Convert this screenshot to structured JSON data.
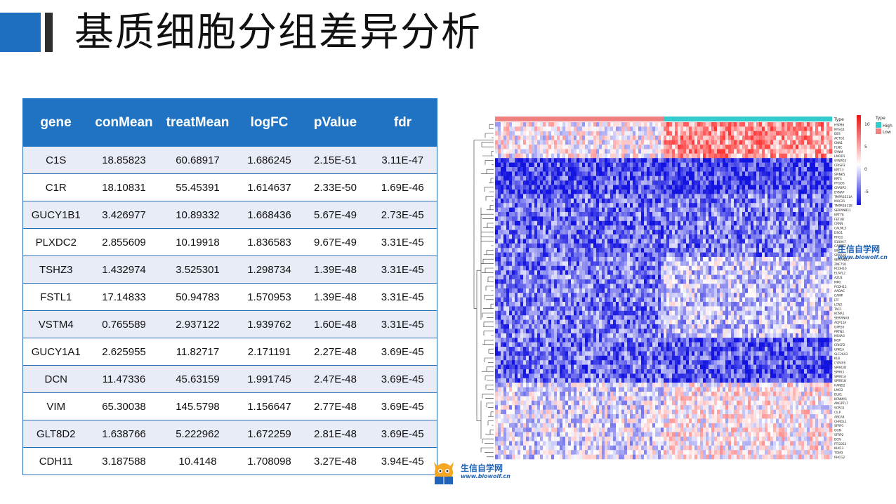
{
  "title": "基质细胞分组差异分析",
  "table": {
    "headers": [
      "gene",
      "conMean",
      "treatMean",
      "logFC",
      "pValue",
      "fdr"
    ],
    "rows": [
      [
        "C1S",
        "18.85823",
        "60.68917",
        "1.686245",
        "2.15E-51",
        "3.11E-47"
      ],
      [
        "C1R",
        "18.10831",
        "55.45391",
        "1.614637",
        "2.33E-50",
        "1.69E-46"
      ],
      [
        "GUCY1B1",
        "3.426977",
        "10.89332",
        "1.668436",
        "5.67E-49",
        "2.73E-45"
      ],
      [
        "PLXDC2",
        "2.855609",
        "10.19918",
        "1.836583",
        "9.67E-49",
        "3.31E-45"
      ],
      [
        "TSHZ3",
        "1.432974",
        "3.525301",
        "1.298734",
        "1.39E-48",
        "3.31E-45"
      ],
      [
        "FSTL1",
        "17.14833",
        "50.94783",
        "1.570953",
        "1.39E-48",
        "3.31E-45"
      ],
      [
        "VSTM4",
        "0.765589",
        "2.937122",
        "1.939762",
        "1.60E-48",
        "3.31E-45"
      ],
      [
        "GUCY1A1",
        "2.625955",
        "11.82717",
        "2.171191",
        "2.27E-48",
        "3.69E-45"
      ],
      [
        "DCN",
        "11.47336",
        "45.63159",
        "1.991745",
        "2.47E-48",
        "3.69E-45"
      ],
      [
        "VIM",
        "65.30038",
        "145.5798",
        "1.156647",
        "2.77E-48",
        "3.69E-45"
      ],
      [
        "GLT8D2",
        "1.638766",
        "5.222962",
        "1.672259",
        "2.81E-48",
        "3.69E-45"
      ],
      [
        "CDH11",
        "3.187588",
        "10.4148",
        "1.708098",
        "3.27E-48",
        "3.94E-45"
      ]
    ]
  },
  "logo": {
    "name": "生信自学网",
    "url": "www.biowolf.cn"
  },
  "chart_data": {
    "type": "heatmap",
    "annotation_label": "Type",
    "groups": [
      {
        "name": "Low",
        "color": "#f08080",
        "fraction": 0.5
      },
      {
        "name": "High",
        "color": "#33cccc",
        "fraction": 0.5
      }
    ],
    "legend": {
      "title": "Type",
      "entries": [
        "High",
        "Low"
      ],
      "ticks": [
        10,
        5,
        0,
        -5
      ],
      "color_high": "#e81414",
      "color_mid": "#ffffff",
      "color_low": "#1414e0"
    },
    "gene_labels": [
      "HSPB6",
      "MYH11",
      "DES",
      "ACTG2",
      "CNN1",
      "FLNC",
      "SYNM",
      "LMOD1",
      "SYNPO2",
      "CRISP3",
      "KRT13",
      "SPINK5",
      "KRT4",
      "PTGDS",
      "CRABP2",
      "DYNAP",
      "TMPRSS11A",
      "MUC21",
      "TMPRSS11B",
      "SERPINB11",
      "KRT78",
      "FETUB",
      "CRNN",
      "CALML3",
      "DSG1",
      "RHCG",
      "S100A7",
      "CARTPT",
      "SIM",
      "SPRR2A",
      "SERPINB2",
      "ZNF750",
      "PCDH10",
      "ELAVL2",
      "AZU1",
      "MPO",
      "PCDH15",
      "AADAC",
      "CAMP",
      "LTF",
      "LCN2",
      "TAC1",
      "KCNA1",
      "SERPINA9",
      "AQP12A",
      "GPR50",
      "PRTN3",
      "MS4A3",
      "NGP",
      "CRISP2",
      "UPK1A",
      "SLC26A3",
      "KLB",
      "CYP4F8",
      "SPRR2D",
      "SPRR3",
      "SPRR1A",
      "SPRR1B",
      "HAND2",
      "LMO3",
      "DLK1",
      "KCNMA1",
      "ANGPTL7",
      "SCRG1",
      "CILP",
      "ABCA8",
      "CHRDL1",
      "SFRP1",
      "OGN",
      "SFRP2",
      "DCN",
      "PTGDS2",
      "KLK13",
      "TGM3",
      "RHCG2"
    ]
  }
}
